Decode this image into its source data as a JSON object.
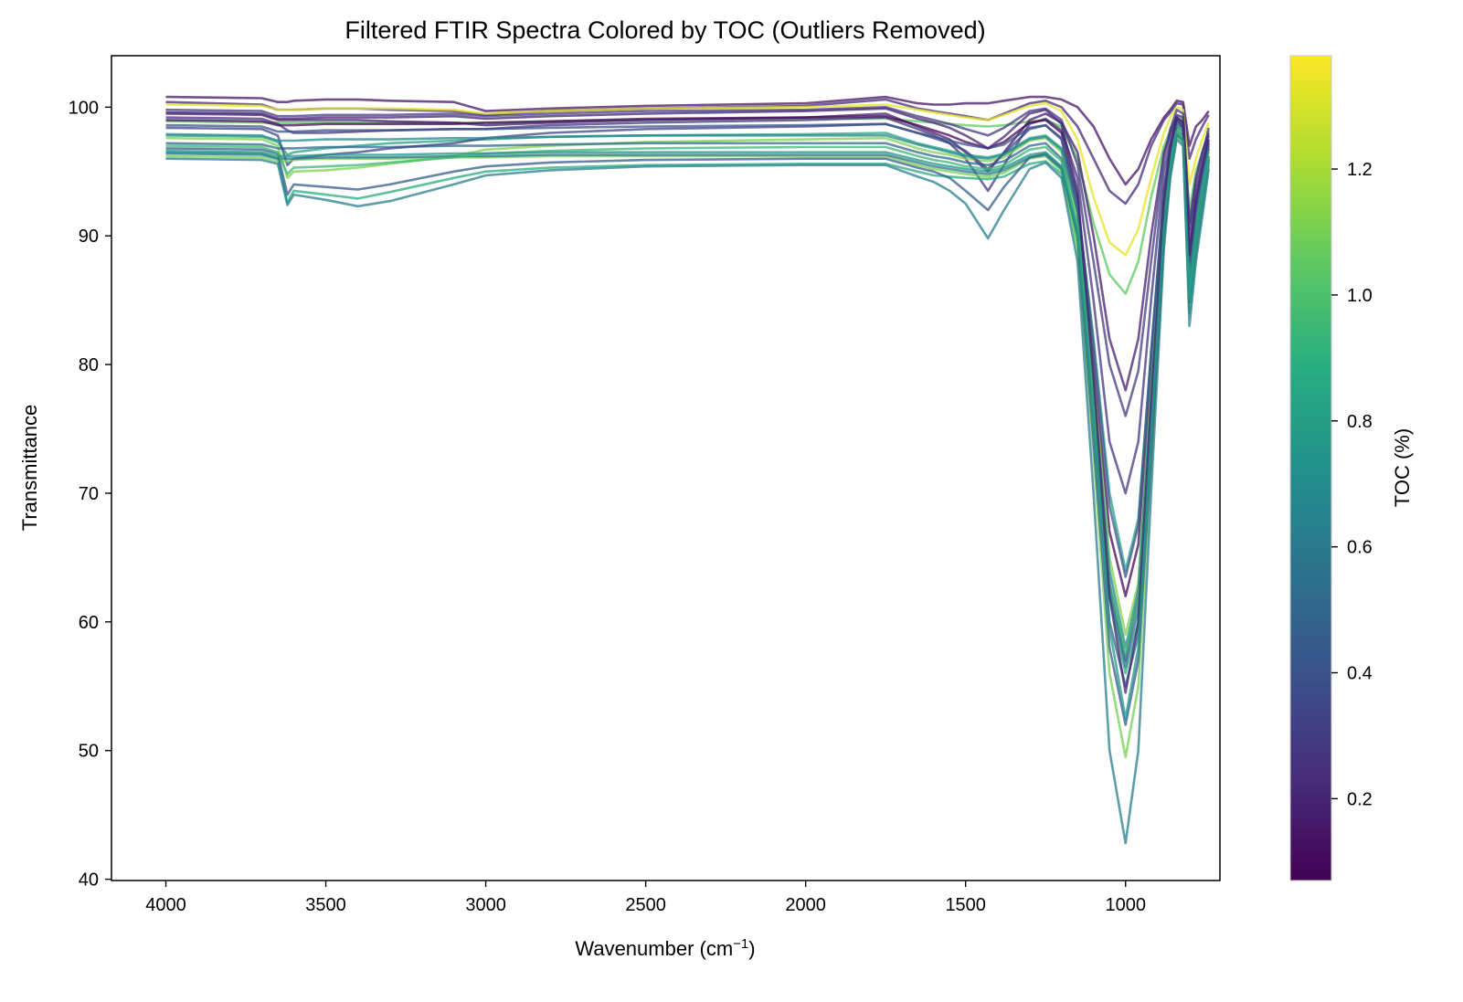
{
  "chart_data": {
    "type": "line",
    "title": "Filtered FTIR Spectra Colored by TOC (Outliers Removed)",
    "xlabel": "Wavenumber (cm",
    "xlabel_sup": "−1",
    "xlabel_end": ")",
    "ylabel": "Transmittance",
    "xlim": [
      4170,
      705
    ],
    "ylim": [
      39.9,
      104.0
    ],
    "x_inverted": true,
    "xticks": [
      4000,
      3500,
      3000,
      2500,
      2000,
      1500,
      1000
    ],
    "yticks": [
      40,
      50,
      60,
      70,
      80,
      90,
      100
    ],
    "grid": false,
    "legend": "none",
    "colorbar": {
      "label": "TOC (%)",
      "colormap": "viridis",
      "range": [
        0.07,
        1.38
      ],
      "ticks": [
        0.2,
        0.4,
        0.6,
        0.8,
        1.0,
        1.2
      ],
      "tick_labels": [
        "0.2",
        "0.4",
        "0.6",
        "0.8",
        "1.0",
        "1.2"
      ]
    },
    "x": [
      4000,
      3700,
      3650,
      3620,
      3600,
      3500,
      3400,
      3300,
      3100,
      3000,
      2800,
      2500,
      2000,
      1750,
      1650,
      1600,
      1550,
      1500,
      1430,
      1380,
      1300,
      1250,
      1200,
      1150,
      1100,
      1050,
      1000,
      960,
      920,
      880,
      860,
      840,
      820,
      800,
      780,
      760,
      740
    ],
    "series": [
      {
        "toc": 0.14,
        "values": [
          100.8,
          100.7,
          100.4,
          100.4,
          100.5,
          100.6,
          100.6,
          100.5,
          100.4,
          99.7,
          99.9,
          100.1,
          100.3,
          100.8,
          100.3,
          100.2,
          100.2,
          100.3,
          100.3,
          100.5,
          100.8,
          100.8,
          100.6,
          100.0,
          98.5,
          96.0,
          94.0,
          95.2,
          97.5,
          99.2,
          99.8,
          100.5,
          100.4,
          97.0,
          98.5,
          99.0,
          99.7
        ]
      },
      {
        "toc": 0.22,
        "values": [
          100.4,
          100.2,
          99.8,
          99.8,
          99.8,
          99.9,
          99.9,
          99.8,
          99.7,
          99.4,
          99.7,
          99.9,
          100.1,
          100.6,
          99.9,
          99.7,
          99.5,
          99.3,
          99.0,
          99.5,
          100.3,
          100.5,
          100.0,
          98.5,
          96.0,
          93.5,
          92.5,
          94.0,
          97.0,
          99.0,
          99.6,
          100.3,
          100.2,
          96.0,
          97.5,
          98.5,
          99.4
        ]
      },
      {
        "toc": 1.33,
        "values": [
          100.2,
          100.1,
          99.8,
          99.8,
          99.8,
          99.9,
          99.9,
          99.9,
          99.8,
          99.5,
          99.7,
          99.9,
          100.0,
          100.2,
          99.8,
          99.6,
          99.4,
          99.2,
          99.0,
          99.4,
          100.1,
          100.3,
          99.7,
          97.5,
          93.0,
          89.5,
          88.5,
          90.5,
          94.5,
          98.0,
          99.2,
          100.0,
          99.8,
          94.0,
          96.0,
          97.5,
          98.8
        ]
      },
      {
        "toc": 1.05,
        "values": [
          98.9,
          98.8,
          98.8,
          98.8,
          98.8,
          98.8,
          98.8,
          98.8,
          98.8,
          98.8,
          98.9,
          99.0,
          99.1,
          99.1,
          98.9,
          98.8,
          98.7,
          98.6,
          98.5,
          98.6,
          98.9,
          99.0,
          98.5,
          96.0,
          91.0,
          87.0,
          85.5,
          88.0,
          93.0,
          97.0,
          98.2,
          99.2,
          99.0,
          92.0,
          95.0,
          96.5,
          98.2
        ]
      },
      {
        "toc": 0.18,
        "values": [
          99.5,
          99.4,
          99.0,
          99.0,
          99.0,
          99.0,
          99.0,
          98.9,
          98.8,
          98.6,
          98.8,
          99.0,
          99.2,
          99.5,
          98.5,
          98.0,
          97.5,
          96.5,
          95.0,
          96.5,
          99.0,
          99.5,
          98.8,
          96.5,
          90.0,
          82.0,
          78.0,
          82.0,
          90.0,
          96.5,
          98.0,
          99.4,
          99.2,
          91.0,
          94.5,
          96.5,
          98.0
        ]
      },
      {
        "toc": 0.28,
        "values": [
          99.2,
          99.1,
          98.7,
          98.2,
          98.0,
          98.0,
          98.1,
          98.2,
          98.3,
          98.3,
          98.6,
          98.8,
          99.0,
          99.2,
          98.3,
          97.8,
          97.2,
          96.0,
          93.5,
          95.5,
          98.7,
          99.1,
          98.2,
          94.5,
          85.0,
          74.0,
          70.0,
          74.0,
          85.0,
          95.0,
          97.5,
          99.2,
          98.8,
          89.5,
          93.5,
          95.5,
          97.5
        ]
      },
      {
        "toc": 0.1,
        "values": [
          99.0,
          98.9,
          98.6,
          98.6,
          98.6,
          98.7,
          98.7,
          98.7,
          98.7,
          98.8,
          98.9,
          99.1,
          99.2,
          99.3,
          98.6,
          98.2,
          97.8,
          97.3,
          96.8,
          97.3,
          98.8,
          99.0,
          98.0,
          93.0,
          80.0,
          67.0,
          62.0,
          66.0,
          80.0,
          93.5,
          97.0,
          99.0,
          98.5,
          88.5,
          92.5,
          95.0,
          97.2
        ]
      },
      {
        "toc": 0.82,
        "values": [
          97.8,
          97.7,
          97.3,
          96.3,
          96.5,
          96.8,
          97.0,
          97.2,
          97.4,
          97.5,
          97.7,
          97.8,
          97.9,
          98.0,
          97.2,
          96.9,
          96.6,
          96.3,
          96.1,
          96.4,
          97.6,
          97.8,
          96.8,
          92.5,
          82.0,
          70.0,
          64.0,
          68.0,
          81.0,
          93.0,
          96.3,
          98.6,
          98.3,
          87.0,
          91.5,
          94.5,
          96.8
        ]
      },
      {
        "toc": 1.12,
        "values": [
          97.6,
          97.5,
          97.0,
          94.5,
          95.0,
          95.1,
          95.3,
          95.6,
          96.2,
          96.7,
          97.0,
          97.3,
          97.5,
          97.6,
          96.8,
          96.5,
          96.3,
          96.0,
          95.8,
          96.1,
          97.4,
          97.6,
          96.5,
          91.5,
          79.0,
          65.0,
          59.0,
          63.0,
          78.0,
          92.0,
          96.0,
          98.4,
          98.0,
          86.0,
          90.5,
          93.8,
          96.5
        ]
      },
      {
        "toc": 0.52,
        "values": [
          97.2,
          97.1,
          96.8,
          96.8,
          96.8,
          96.9,
          96.9,
          96.9,
          97.0,
          97.0,
          97.1,
          97.2,
          97.2,
          97.2,
          96.5,
          96.2,
          96.0,
          95.7,
          95.5,
          95.8,
          97.0,
          97.2,
          96.0,
          90.5,
          76.0,
          60.0,
          55.0,
          59.0,
          75.0,
          91.0,
          95.5,
          98.2,
          97.8,
          85.0,
          89.5,
          93.0,
          96.0
        ]
      },
      {
        "toc": 0.35,
        "values": [
          98.4,
          98.3,
          97.8,
          95.5,
          96.0,
          96.3,
          96.5,
          96.8,
          97.2,
          97.6,
          98.0,
          98.3,
          98.5,
          98.7,
          98.0,
          97.6,
          97.2,
          96.6,
          95.2,
          96.4,
          98.3,
          98.6,
          97.5,
          92.0,
          78.0,
          63.0,
          57.0,
          62.0,
          77.0,
          92.0,
          96.2,
          98.8,
          98.4,
          87.5,
          91.8,
          94.8,
          97.0
        ]
      },
      {
        "toc": 0.88,
        "values": [
          96.5,
          96.4,
          96.0,
          92.6,
          93.5,
          93.2,
          92.9,
          93.4,
          94.5,
          95.0,
          95.3,
          95.5,
          95.6,
          95.6,
          95.0,
          94.7,
          94.6,
          94.5,
          94.4,
          94.6,
          95.6,
          95.8,
          94.8,
          89.5,
          76.0,
          62.0,
          56.0,
          60.0,
          74.0,
          90.0,
          95.0,
          97.8,
          97.2,
          84.0,
          88.5,
          92.0,
          95.5
        ]
      },
      {
        "toc": 1.1,
        "values": [
          96.2,
          96.1,
          95.8,
          95.8,
          95.9,
          96.0,
          96.0,
          96.0,
          96.1,
          96.1,
          96.2,
          96.2,
          96.2,
          96.2,
          95.5,
          95.2,
          95.0,
          94.8,
          94.6,
          94.9,
          96.0,
          96.2,
          95.0,
          89.0,
          73.0,
          56.0,
          49.5,
          55.0,
          72.0,
          89.5,
          94.8,
          97.8,
          97.2,
          84.5,
          89.0,
          92.5,
          95.8
        ]
      },
      {
        "toc": 0.62,
        "values": [
          96.0,
          95.9,
          95.6,
          92.4,
          93.2,
          92.8,
          92.3,
          92.7,
          94.0,
          94.7,
          95.1,
          95.4,
          95.5,
          95.5,
          94.6,
          94.2,
          93.5,
          92.5,
          89.8,
          92.0,
          95.2,
          95.7,
          94.5,
          88.0,
          70.0,
          50.0,
          42.8,
          50.0,
          70.0,
          89.0,
          94.5,
          97.5,
          97.0,
          83.0,
          88.0,
          91.5,
          95.2
        ]
      },
      {
        "toc": 0.45,
        "values": [
          96.8,
          96.7,
          96.4,
          93.2,
          94.0,
          93.8,
          93.6,
          94.0,
          95.0,
          95.4,
          95.7,
          95.9,
          96.0,
          96.0,
          95.3,
          95.0,
          94.5,
          93.5,
          92.0,
          93.8,
          96.1,
          96.4,
          95.3,
          90.0,
          74.0,
          58.0,
          52.0,
          57.0,
          73.0,
          90.0,
          95.0,
          98.0,
          97.5,
          85.5,
          90.0,
          93.2,
          96.2
        ]
      },
      {
        "toc": 0.68,
        "values": [
          97.9,
          97.8,
          97.4,
          97.4,
          97.4,
          97.5,
          97.5,
          97.5,
          97.6,
          97.6,
          97.7,
          97.8,
          97.8,
          97.8,
          97.1,
          96.8,
          96.5,
          96.2,
          96.0,
          96.3,
          97.5,
          97.7,
          96.7,
          91.8,
          78.5,
          64.0,
          58.0,
          62.5,
          77.5,
          92.0,
          96.0,
          98.5,
          98.1,
          86.5,
          91.0,
          94.0,
          96.8
        ]
      },
      {
        "toc": 0.4,
        "values": [
          98.6,
          98.5,
          98.1,
          98.1,
          98.1,
          98.2,
          98.2,
          98.2,
          98.3,
          98.3,
          98.4,
          98.5,
          98.6,
          98.7,
          98.0,
          97.7,
          97.4,
          97.1,
          96.8,
          97.1,
          98.4,
          98.6,
          97.6,
          92.8,
          81.5,
          69.0,
          63.5,
          67.5,
          81.0,
          93.5,
          97.0,
          99.0,
          98.6,
          88.0,
          92.2,
          95.0,
          97.4
        ]
      },
      {
        "toc": 0.3,
        "values": [
          99.8,
          99.7,
          99.3,
          99.3,
          99.3,
          99.4,
          99.4,
          99.4,
          99.5,
          99.3,
          99.5,
          99.7,
          99.8,
          100.0,
          99.3,
          99.0,
          98.7,
          98.3,
          97.8,
          98.4,
          99.7,
          99.9,
          99.0,
          95.5,
          88.0,
          80.0,
          76.0,
          79.5,
          88.0,
          96.0,
          98.3,
          99.8,
          99.5,
          90.5,
          94.0,
          96.2,
          98.4
        ]
      },
      {
        "toc": 0.58,
        "values": [
          96.4,
          96.3,
          96.0,
          96.0,
          96.0,
          96.1,
          96.1,
          96.1,
          96.2,
          96.2,
          96.3,
          96.3,
          96.3,
          96.3,
          95.7,
          95.4,
          95.2,
          95.0,
          94.8,
          95.1,
          96.1,
          96.3,
          95.2,
          90.2,
          77.0,
          62.5,
          56.5,
          61.0,
          76.0,
          91.0,
          95.3,
          97.9,
          97.4,
          84.8,
          89.2,
          92.6,
          95.8
        ]
      },
      {
        "toc": 0.95,
        "values": [
          97.0,
          96.9,
          96.5,
          94.8,
          95.3,
          95.4,
          95.5,
          95.7,
          96.1,
          96.4,
          96.6,
          96.8,
          96.9,
          96.9,
          96.2,
          95.9,
          95.7,
          95.4,
          95.2,
          95.5,
          96.7,
          96.9,
          95.8,
          90.8,
          77.5,
          63.0,
          57.5,
          61.8,
          76.8,
          91.5,
          95.6,
          98.1,
          97.6,
          85.2,
          89.6,
          93.0,
          96.1
        ]
      },
      {
        "toc": 0.2,
        "values": [
          99.6,
          99.5,
          99.1,
          99.1,
          99.1,
          99.2,
          99.2,
          99.2,
          99.3,
          99.1,
          99.3,
          99.5,
          99.7,
          99.9,
          99.1,
          98.8,
          98.4,
          97.8,
          96.8,
          97.7,
          99.5,
          99.8,
          98.7,
          93.5,
          79.0,
          62.0,
          54.5,
          60.0,
          77.0,
          92.5,
          96.8,
          99.2,
          98.8,
          88.5,
          92.8,
          95.4,
          97.8
        ]
      },
      {
        "toc": 0.75,
        "values": [
          96.6,
          96.5,
          96.2,
          96.2,
          96.2,
          96.3,
          96.3,
          96.3,
          96.4,
          96.4,
          96.5,
          96.5,
          96.5,
          96.5,
          95.9,
          95.6,
          95.4,
          95.2,
          95.0,
          95.3,
          96.3,
          96.5,
          95.4,
          90.0,
          75.5,
          59.5,
          52.5,
          58.0,
          74.5,
          90.5,
          95.2,
          97.9,
          97.4,
          85.0,
          89.4,
          92.8,
          95.9
        ]
      }
    ]
  }
}
